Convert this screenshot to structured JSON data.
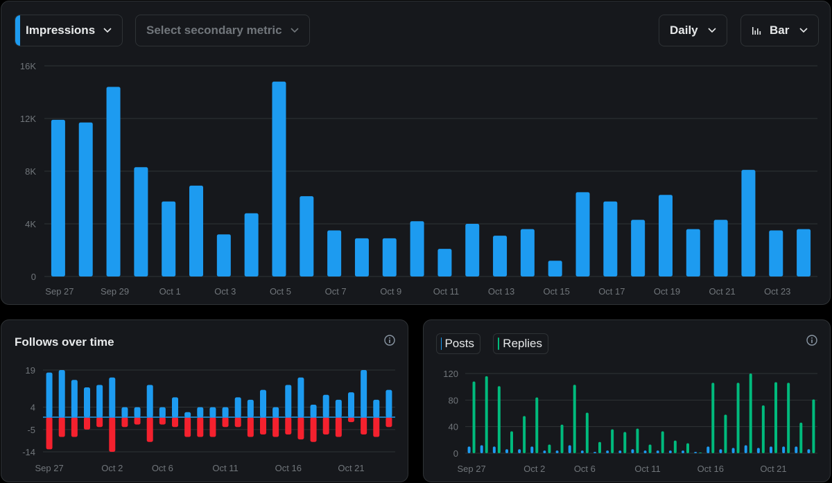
{
  "controls": {
    "metric_label": "Impressions",
    "secondary_placeholder": "Select secondary metric",
    "interval_label": "Daily",
    "type_label": "Bar"
  },
  "colors": {
    "accent_blue": "#1d9bf0",
    "red": "#f4212e",
    "green": "#00ba7c",
    "grid": "#2f3336",
    "axis_text": "#71767b"
  },
  "follows": {
    "title": "Follows over time"
  },
  "posts": {
    "legend_posts": "Posts",
    "legend_replies": "Replies"
  },
  "chart_data": [
    {
      "type": "bar",
      "series_name": "Impressions",
      "x": [
        "Sep 27",
        "Sep 28",
        "Sep 29",
        "Sep 30",
        "Oct 1",
        "Oct 2",
        "Oct 3",
        "Oct 4",
        "Oct 5",
        "Oct 6",
        "Oct 7",
        "Oct 8",
        "Oct 9",
        "Oct 10",
        "Oct 11",
        "Oct 12",
        "Oct 13",
        "Oct 14",
        "Oct 15",
        "Oct 16",
        "Oct 17",
        "Oct 18",
        "Oct 19",
        "Oct 20",
        "Oct 21",
        "Oct 22",
        "Oct 23",
        "Oct 24"
      ],
      "values": [
        11900,
        11700,
        14400,
        8300,
        5700,
        6900,
        3200,
        4800,
        14800,
        6100,
        3500,
        2900,
        2900,
        4200,
        2100,
        4000,
        3100,
        3600,
        1200,
        6400,
        5700,
        4300,
        6200,
        3600,
        4300,
        8100,
        3500,
        3600
      ],
      "xtick_labels": [
        "Sep 27",
        "Sep 29",
        "Oct 1",
        "Oct 3",
        "Oct 5",
        "Oct 7",
        "Oct 9",
        "Oct 11",
        "Oct 13",
        "Oct 15",
        "Oct 17",
        "Oct 19",
        "Oct 21",
        "Oct 23"
      ],
      "ytick_labels": [
        "0",
        "4K",
        "8K",
        "12K",
        "16K"
      ],
      "ylim": [
        0,
        16000
      ],
      "grid": true
    },
    {
      "type": "bar",
      "title": "Follows over time",
      "x": [
        "Sep 27",
        "Sep 28",
        "Sep 29",
        "Sep 30",
        "Oct 1",
        "Oct 2",
        "Oct 3",
        "Oct 4",
        "Oct 5",
        "Oct 6",
        "Oct 7",
        "Oct 8",
        "Oct 9",
        "Oct 10",
        "Oct 11",
        "Oct 12",
        "Oct 13",
        "Oct 14",
        "Oct 15",
        "Oct 16",
        "Oct 17",
        "Oct 18",
        "Oct 19",
        "Oct 20",
        "Oct 21",
        "Oct 22",
        "Oct 23",
        "Oct 24"
      ],
      "series": [
        {
          "color": "#1d9bf0",
          "values": [
            18,
            19,
            15,
            12,
            13,
            16,
            4,
            4,
            13,
            4,
            8,
            2,
            4,
            4,
            4,
            8,
            7,
            11,
            4,
            13,
            16,
            5,
            9,
            7,
            10,
            19,
            7,
            11
          ]
        },
        {
          "color": "#f4212e",
          "values": [
            -13,
            -8,
            -8,
            -5,
            -4,
            -14,
            -4,
            -3,
            -10,
            -3,
            -4,
            -8,
            -8,
            -8,
            -4,
            -4,
            -8,
            -7,
            -8,
            -7,
            -9,
            -10,
            -7,
            -8,
            -2,
            -7,
            -8,
            -4
          ]
        }
      ],
      "xtick_labels": [
        "Sep 27",
        "Oct 2",
        "Oct 6",
        "Oct 11",
        "Oct 16",
        "Oct 21"
      ],
      "ytick_labels": [
        "19",
        "4",
        "-5",
        "-14"
      ],
      "yticks": [
        19,
        4,
        -5,
        -14
      ],
      "ylim": [
        -14,
        19
      ],
      "grid": true
    },
    {
      "type": "bar",
      "x": [
        "Sep 27",
        "Sep 28",
        "Sep 29",
        "Sep 30",
        "Oct 1",
        "Oct 2",
        "Oct 3",
        "Oct 4",
        "Oct 5",
        "Oct 6",
        "Oct 7",
        "Oct 8",
        "Oct 9",
        "Oct 10",
        "Oct 11",
        "Oct 12",
        "Oct 13",
        "Oct 14",
        "Oct 15",
        "Oct 16",
        "Oct 17",
        "Oct 18",
        "Oct 19",
        "Oct 20",
        "Oct 21",
        "Oct 22",
        "Oct 23",
        "Oct 24"
      ],
      "series": [
        {
          "name": "Posts",
          "color": "#1d9bf0",
          "values": [
            10,
            12,
            10,
            6,
            6,
            10,
            4,
            4,
            12,
            4,
            2,
            4,
            4,
            6,
            4,
            4,
            4,
            4,
            2,
            10,
            6,
            8,
            12,
            8,
            10,
            10,
            10,
            6
          ]
        },
        {
          "name": "Replies",
          "color": "#00ba7c",
          "values": [
            108,
            116,
            101,
            33,
            56,
            84,
            13,
            43,
            103,
            61,
            17,
            36,
            32,
            37,
            13,
            33,
            19,
            15,
            1,
            106,
            58,
            106,
            120,
            72,
            107,
            106,
            46,
            81
          ]
        }
      ],
      "xtick_labels": [
        "Sep 27",
        "Oct 2",
        "Oct 6",
        "Oct 11",
        "Oct 16",
        "Oct 21"
      ],
      "ytick_labels": [
        "0",
        "40",
        "80",
        "120"
      ],
      "ylim": [
        0,
        120
      ],
      "grid": true
    }
  ]
}
